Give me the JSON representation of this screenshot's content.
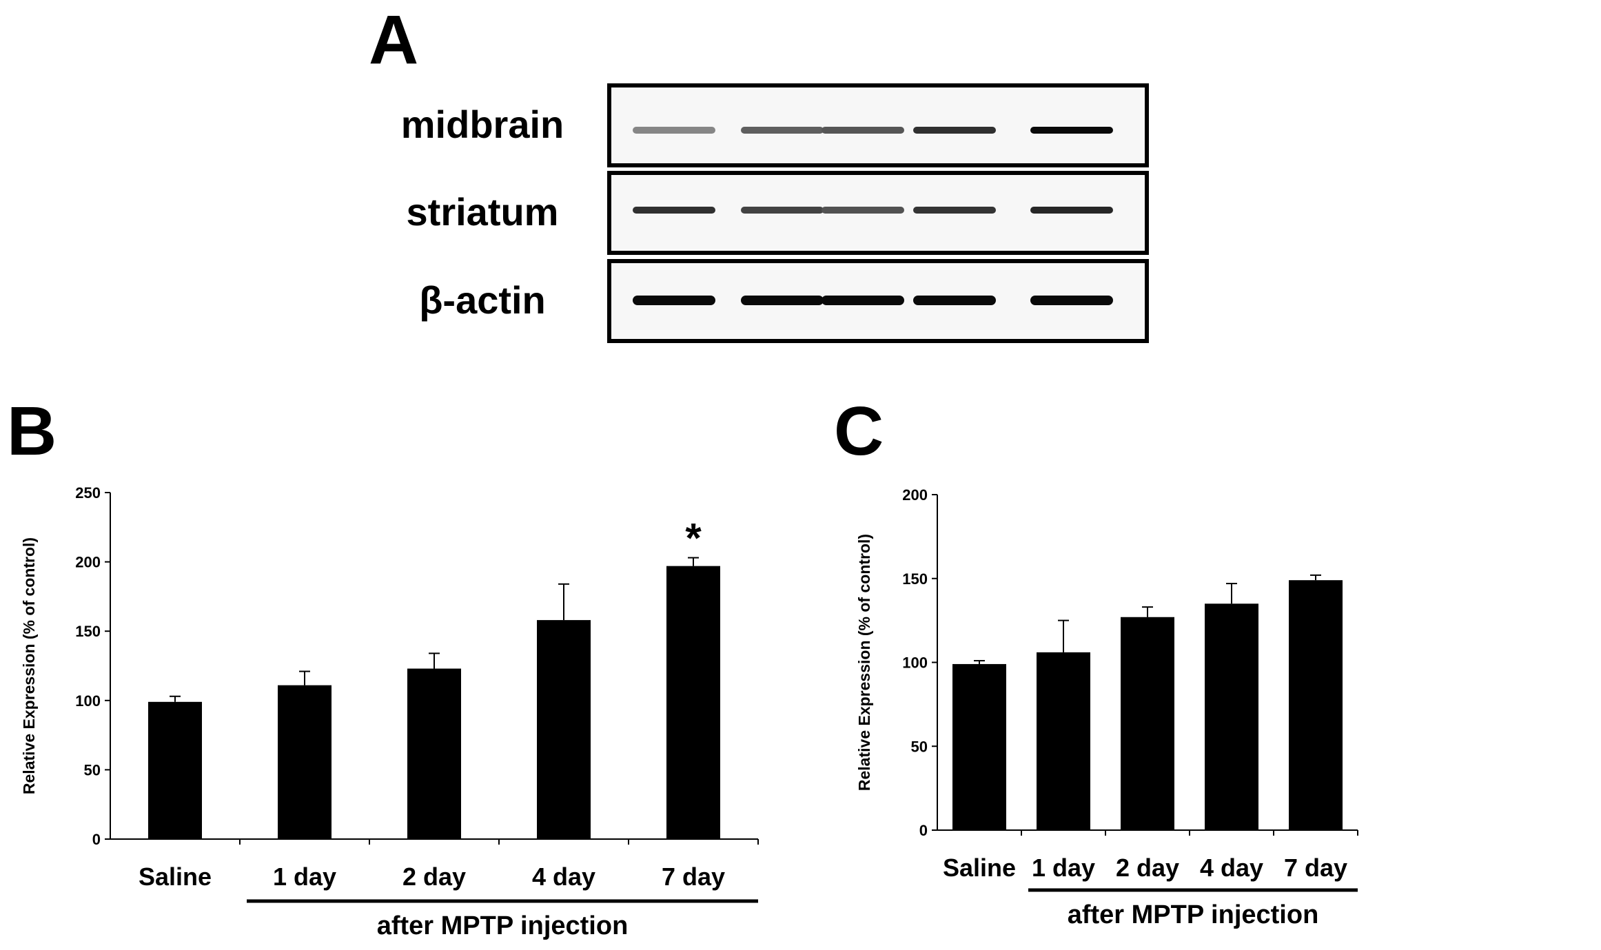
{
  "panels": {
    "a": {
      "letter": "A"
    },
    "b": {
      "letter": "B"
    },
    "c": {
      "letter": "C"
    }
  },
  "blot": {
    "rows": [
      {
        "label": "midbrain",
        "band_intensity": [
          0.35,
          0.55,
          0.6,
          0.8,
          1.0
        ]
      },
      {
        "label": "striatum",
        "band_intensity": [
          0.8,
          0.7,
          0.62,
          0.78,
          0.85
        ]
      },
      {
        "label": "β-actin",
        "band_intensity": [
          1.0,
          1.0,
          1.0,
          1.0,
          1.0
        ]
      }
    ],
    "lane_count": 5
  },
  "chart_data": [
    {
      "type": "bar",
      "panel": "B",
      "categories": [
        "Saline",
        "1 day",
        "2 day",
        "4 day",
        "7 day"
      ],
      "values": [
        99,
        111,
        123,
        158,
        197
      ],
      "errors": [
        4,
        10,
        11,
        26,
        6
      ],
      "significance": [
        "",
        "",
        "",
        "",
        "*"
      ],
      "ylabel": "Relative Expression (% of control)",
      "xlabel": "",
      "group_label": "after MPTP injection",
      "ylim": [
        0,
        250
      ],
      "yticks": [
        0,
        50,
        100,
        150,
        200,
        250
      ],
      "bar_color": "#000000",
      "grid": false
    },
    {
      "type": "bar",
      "panel": "C",
      "categories": [
        "Saline",
        "1 day",
        "2 day",
        "4 day",
        "7 day"
      ],
      "values": [
        99,
        106,
        127,
        135,
        149
      ],
      "errors": [
        2,
        19,
        6,
        12,
        3
      ],
      "significance": [
        "",
        "",
        "",
        "",
        ""
      ],
      "ylabel": "Relative Expression (% of control)",
      "xlabel": "",
      "group_label": "after MPTP injection",
      "ylim": [
        0,
        200
      ],
      "yticks": [
        0,
        50,
        100,
        150,
        200
      ],
      "bar_color": "#000000",
      "grid": false
    }
  ]
}
